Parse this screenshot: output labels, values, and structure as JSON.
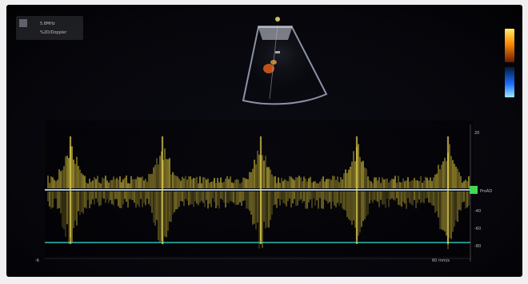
{
  "window": {
    "title": ""
  },
  "info_box": {
    "line1": "5.8MHz",
    "line2": "%2D/Doppler"
  },
  "baseline_marker_label": "ProAD",
  "right_scale": {
    "tick_labels": [
      "20",
      "0",
      "-40",
      "-60",
      "-80"
    ]
  },
  "bottom_scale": {
    "start_label": "-6",
    "end_label": "60 mm/s"
  },
  "colors": {
    "background": "#05050a",
    "doppler_signal": "#d8c23a",
    "baseline": "#cfe8ff",
    "bottom_line": "#2fd1c8",
    "sector_outline": "#9aa1b5",
    "marker_green": "#48e05a",
    "colorbar_top": "#ff8a00",
    "colorbar_bottom": "#1aa6ff"
  }
}
